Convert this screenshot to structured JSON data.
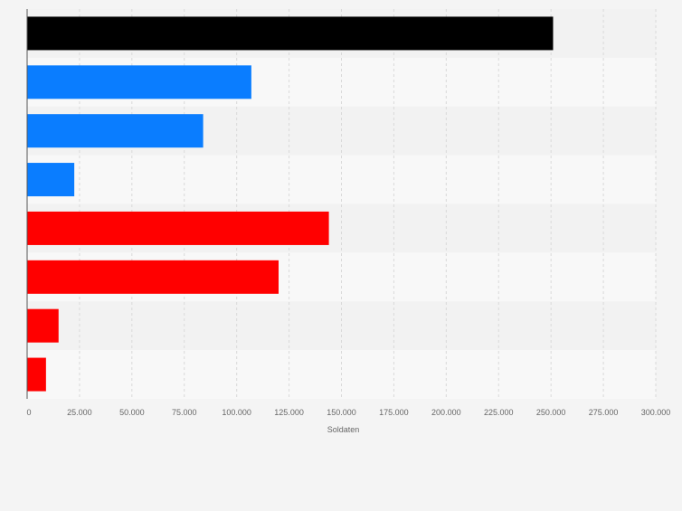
{
  "chart_data": {
    "type": "bar",
    "orientation": "horizontal",
    "categories": [
      "",
      "",
      "",
      "",
      "",
      "",
      "",
      ""
    ],
    "values": [
      251000,
      107000,
      84000,
      22500,
      144000,
      120000,
      15000,
      9000
    ],
    "colors": [
      "#000000",
      "#0a7dff",
      "#0a7dff",
      "#0a7dff",
      "#ff0000",
      "#ff0000",
      "#ff0000",
      "#ff0000"
    ],
    "title": "",
    "xlabel": "Soldaten",
    "ylabel": "",
    "xlim": [
      0,
      300000
    ],
    "xticks": [
      0,
      25000,
      50000,
      75000,
      100000,
      125000,
      150000,
      175000,
      200000,
      225000,
      250000,
      275000,
      300000
    ],
    "xtick_labels": [
      "0",
      "25.000",
      "50.000",
      "75.000",
      "100.000",
      "125.000",
      "150.000",
      "175.000",
      "200.000",
      "225.000",
      "250.000",
      "275.000",
      "300.000"
    ],
    "grid": true,
    "legend": "none"
  },
  "colors": {
    "background": "#f4f4f4",
    "band_dark": "#f2f2f2",
    "band_light": "#f8f8f8",
    "grid": "#d9d9d9",
    "axis": "#555555",
    "tick_text": "#666666"
  }
}
